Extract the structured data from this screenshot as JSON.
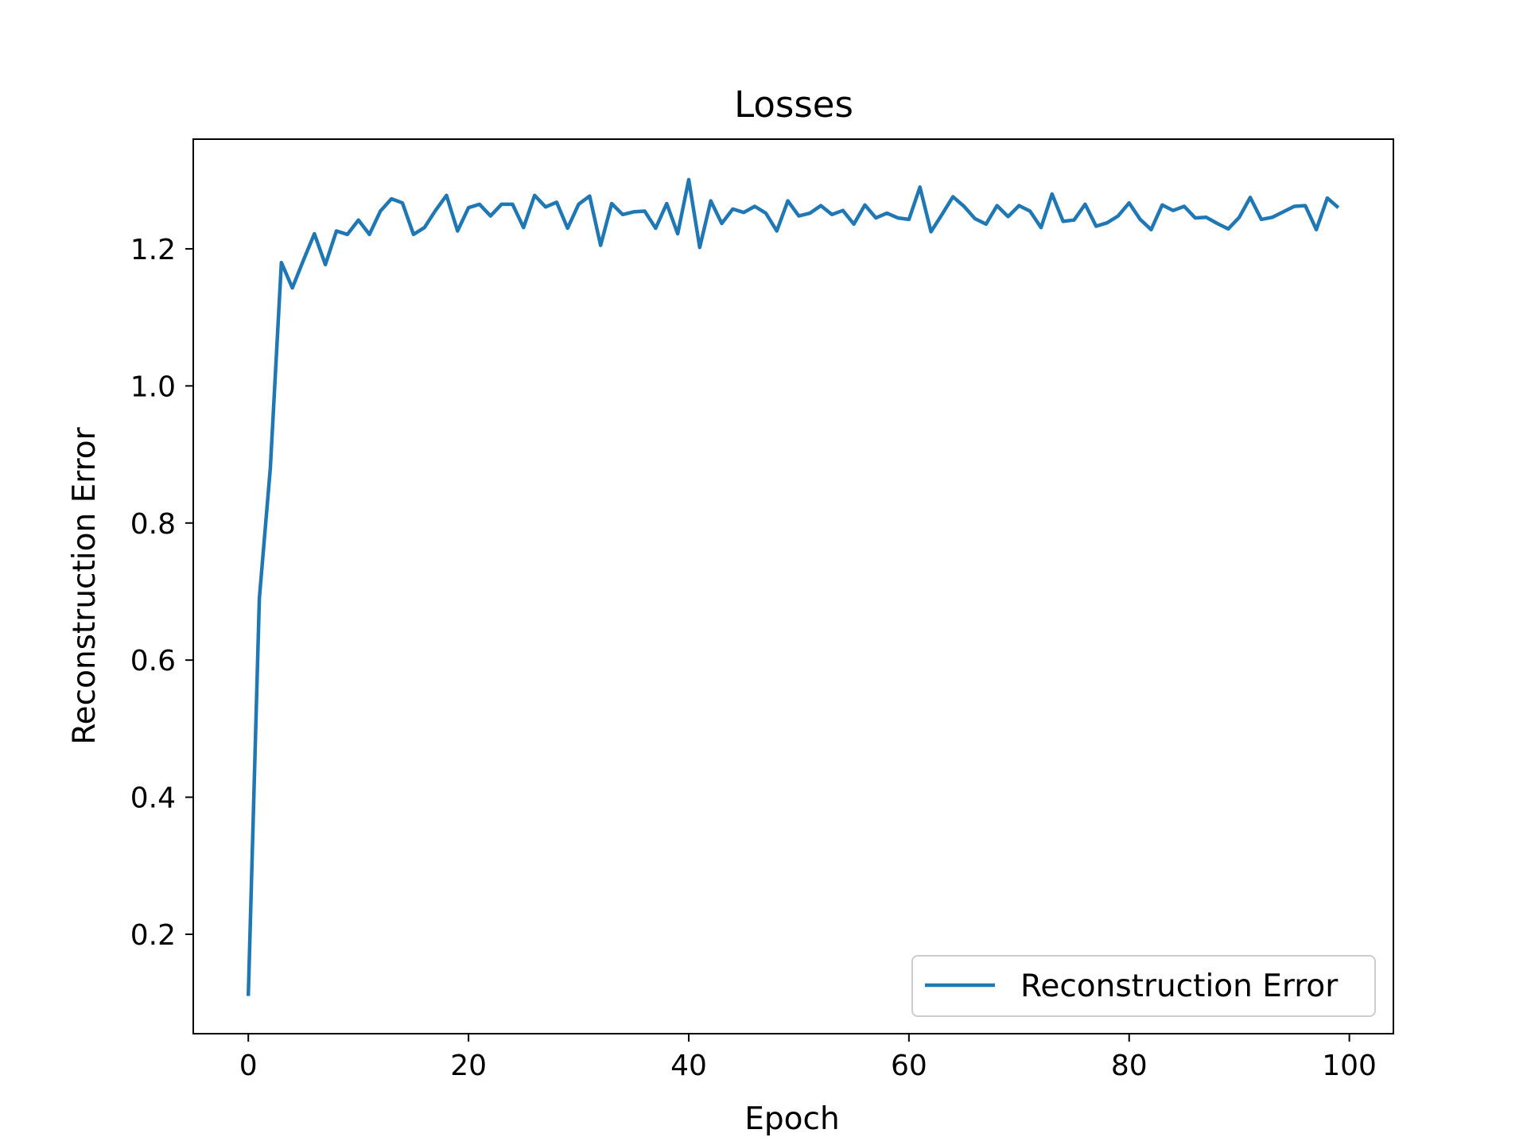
{
  "chart_data": {
    "type": "line",
    "title": "Losses",
    "xlabel": "Epoch",
    "ylabel": "Reconstruction Error",
    "xlim": [
      -5,
      104
    ],
    "ylim": [
      0.055,
      1.36
    ],
    "xticks": [
      0,
      20,
      40,
      60,
      80,
      100
    ],
    "yticks": [
      0.2,
      0.4,
      0.6,
      0.8,
      1.0,
      1.2
    ],
    "xtick_labels": [
      "0",
      "20",
      "40",
      "60",
      "80",
      "100"
    ],
    "ytick_labels": [
      "0.2",
      "0.4",
      "0.6",
      "0.8",
      "1.0",
      "1.2"
    ],
    "grid": false,
    "legend_position": "bottom-right",
    "series": [
      {
        "name": "Reconstruction Error",
        "color": "#1f77b4",
        "x": [
          0,
          1,
          2,
          3,
          4,
          5,
          6,
          7,
          8,
          9,
          10,
          11,
          12,
          13,
          14,
          15,
          16,
          17,
          18,
          19,
          20,
          21,
          22,
          23,
          24,
          25,
          26,
          27,
          28,
          29,
          30,
          31,
          32,
          33,
          34,
          35,
          36,
          37,
          38,
          39,
          40,
          41,
          42,
          43,
          44,
          45,
          46,
          47,
          48,
          49,
          50,
          51,
          52,
          53,
          54,
          55,
          56,
          57,
          58,
          59,
          60,
          61,
          62,
          63,
          64,
          65,
          66,
          67,
          68,
          69,
          70,
          71,
          72,
          73,
          74,
          75,
          76,
          77,
          78,
          79,
          80,
          81,
          82,
          83,
          84,
          85,
          86,
          87,
          88,
          89,
          90,
          91,
          92,
          93,
          94,
          95,
          96,
          97,
          98,
          99
        ],
        "y": [
          0.11,
          0.69,
          0.88,
          1.18,
          1.143,
          1.183,
          1.222,
          1.177,
          1.226,
          1.221,
          1.242,
          1.221,
          1.255,
          1.273,
          1.267,
          1.221,
          1.231,
          1.256,
          1.278,
          1.226,
          1.26,
          1.265,
          1.248,
          1.265,
          1.265,
          1.231,
          1.278,
          1.261,
          1.268,
          1.23,
          1.265,
          1.277,
          1.205,
          1.266,
          1.25,
          1.254,
          1.255,
          1.23,
          1.266,
          1.222,
          1.301,
          1.202,
          1.27,
          1.237,
          1.258,
          1.253,
          1.262,
          1.252,
          1.226,
          1.27,
          1.248,
          1.252,
          1.263,
          1.25,
          1.256,
          1.236,
          1.264,
          1.245,
          1.252,
          1.245,
          1.243,
          1.29,
          1.225,
          1.25,
          1.276,
          1.262,
          1.244,
          1.236,
          1.263,
          1.247,
          1.263,
          1.255,
          1.231,
          1.28,
          1.24,
          1.242,
          1.265,
          1.233,
          1.238,
          1.248,
          1.267,
          1.243,
          1.228,
          1.264,
          1.256,
          1.262,
          1.245,
          1.246,
          1.237,
          1.229,
          1.246,
          1.275,
          1.243,
          1.246,
          1.254,
          1.262,
          1.263,
          1.228,
          1.274,
          1.26
        ]
      }
    ]
  }
}
